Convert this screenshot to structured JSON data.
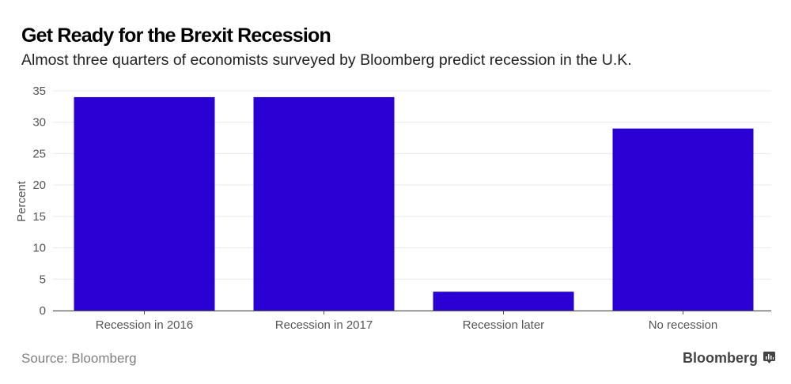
{
  "header": {
    "title": "Get Ready for the Brexit Recession",
    "subtitle": "Almost three quarters of economists surveyed by Bloomberg predict recession in the U.K."
  },
  "footer": {
    "source": "Source: Bloomberg",
    "brand": "Bloomberg",
    "brand_icon": "bloomberg-chart-icon"
  },
  "colors": {
    "bar": "#2a00d4",
    "grid": "#e6e9ee",
    "axis": "#555555",
    "tick_text": "#555555"
  },
  "chart_data": {
    "type": "bar",
    "title": "Get Ready for the Brexit Recession",
    "subtitle": "Almost three quarters of economists surveyed by Bloomberg predict recession in the U.K.",
    "categories": [
      "Recession in 2016",
      "Recession in 2017",
      "Recession later",
      "No recession"
    ],
    "values": [
      34,
      34,
      3,
      29
    ],
    "xlabel": "",
    "ylabel": "Percent",
    "ylim": [
      0,
      35
    ],
    "yticks": [
      0,
      5,
      10,
      15,
      20,
      25,
      30,
      35
    ],
    "grid": true,
    "legend": "none"
  }
}
